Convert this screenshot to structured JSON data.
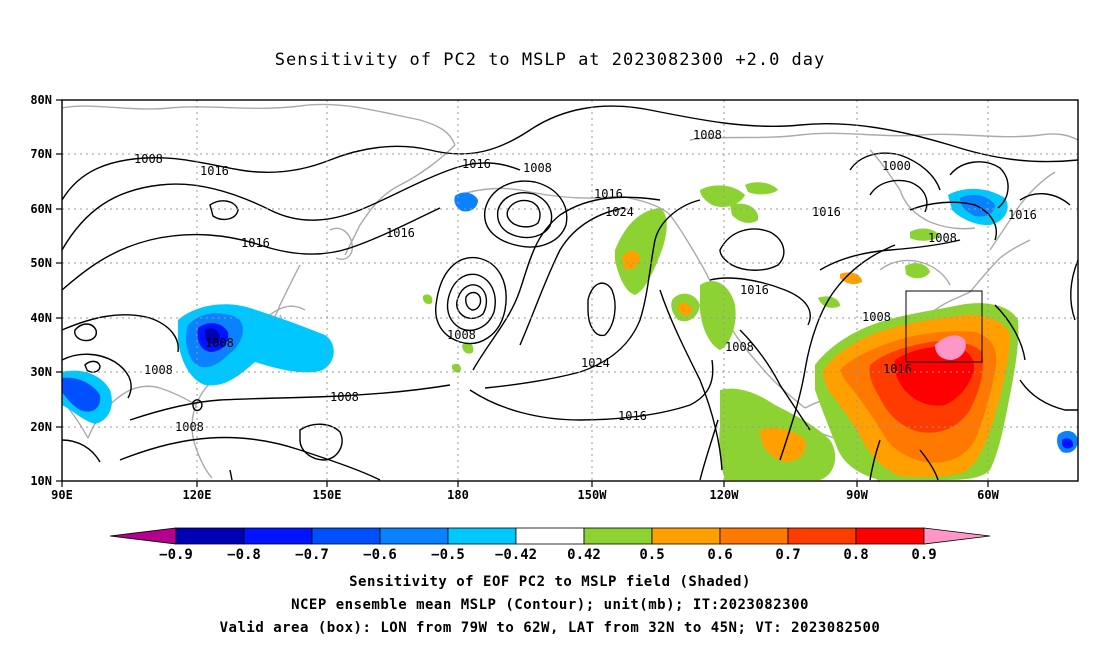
{
  "title": "Sensitivity of PC2 to MSLP at 2023082300 +2.0 day",
  "lat_labels": [
    "80N",
    "70N",
    "60N",
    "50N",
    "40N",
    "30N",
    "20N",
    "10N"
  ],
  "lon_labels": [
    "90E",
    "120E",
    "150E",
    "180",
    "150W",
    "120W",
    "90W",
    "60W"
  ],
  "contour_labels": [
    "1008",
    "1016",
    "1016",
    "1008",
    "1016",
    "1008",
    "1016",
    "1024",
    "1016",
    "1008",
    "1000",
    "1016",
    "1016",
    "1008",
    "1016",
    "1016",
    "1008",
    "1008",
    "1008",
    "1024",
    "1016",
    "1008",
    "1008",
    "1016",
    "1008",
    "1008"
  ],
  "colorbar": {
    "labels": [
      "-0.9",
      "-0.8",
      "-0.7",
      "-0.6",
      "-0.5",
      "-0.42",
      "0.42",
      "0.5",
      "0.6",
      "0.7",
      "0.8",
      "0.9"
    ],
    "colors": [
      "#b4008c",
      "#0000b4",
      "#0014ff",
      "#0050ff",
      "#0a82ff",
      "#00c8ff",
      "#ffffff",
      "#8cd232",
      "#ffa000",
      "#ff7800",
      "#ff3c00",
      "#ff0000",
      "#ff96c8"
    ]
  },
  "captions": [
    "Sensitivity of EOF PC2 to MSLP field (Shaded)",
    "NCEP ensemble mean MSLP (Contour); unit(mb); IT:2023082300",
    "Valid area (box): LON from 79W to 62W, LAT from 32N to 45N; VT: 2023082500"
  ]
}
